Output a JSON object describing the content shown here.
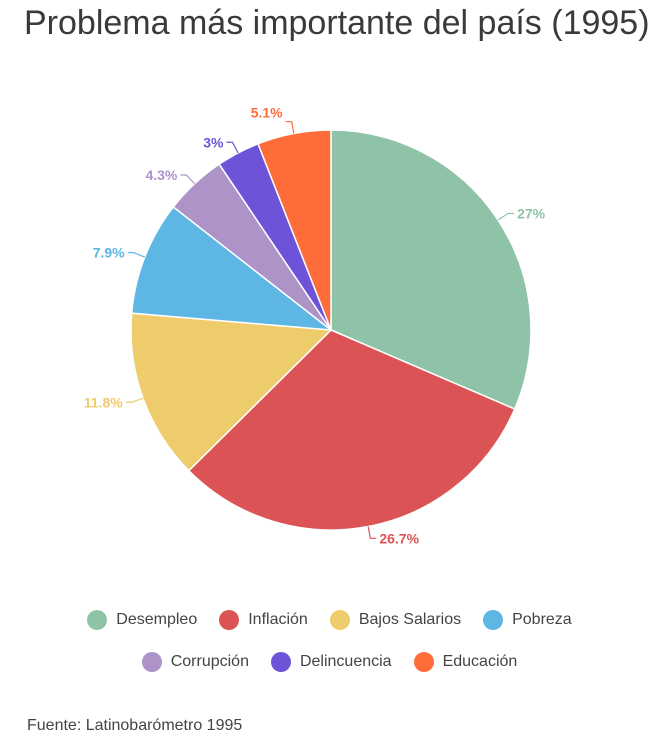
{
  "chart_data": {
    "type": "pie",
    "title": "Problema más importante del país (1995)",
    "source": "Fuente: Latinobarómetro 1995",
    "slices": [
      {
        "name": "Desempleo",
        "value": 27,
        "label": "27%",
        "color": "#8fc3a7"
      },
      {
        "name": "Inflación",
        "value": 26.7,
        "label": "26.7%",
        "color": "#dc5356"
      },
      {
        "name": "Bajos Salarios",
        "value": 11.8,
        "label": "11.8%",
        "color": "#eecb6b"
      },
      {
        "name": "Pobreza",
        "value": 7.9,
        "label": "7.9%",
        "color": "#5db6e4"
      },
      {
        "name": "Corrupción",
        "value": 4.3,
        "label": "4.3%",
        "color": "#ad93c8"
      },
      {
        "name": "Delincuencia",
        "value": 3,
        "label": "3%",
        "color": "#6e53d9"
      },
      {
        "name": "Educación",
        "value": 5.1,
        "label": "5.1%",
        "color": "#fe6c3a"
      }
    ],
    "legend": "bottom"
  }
}
